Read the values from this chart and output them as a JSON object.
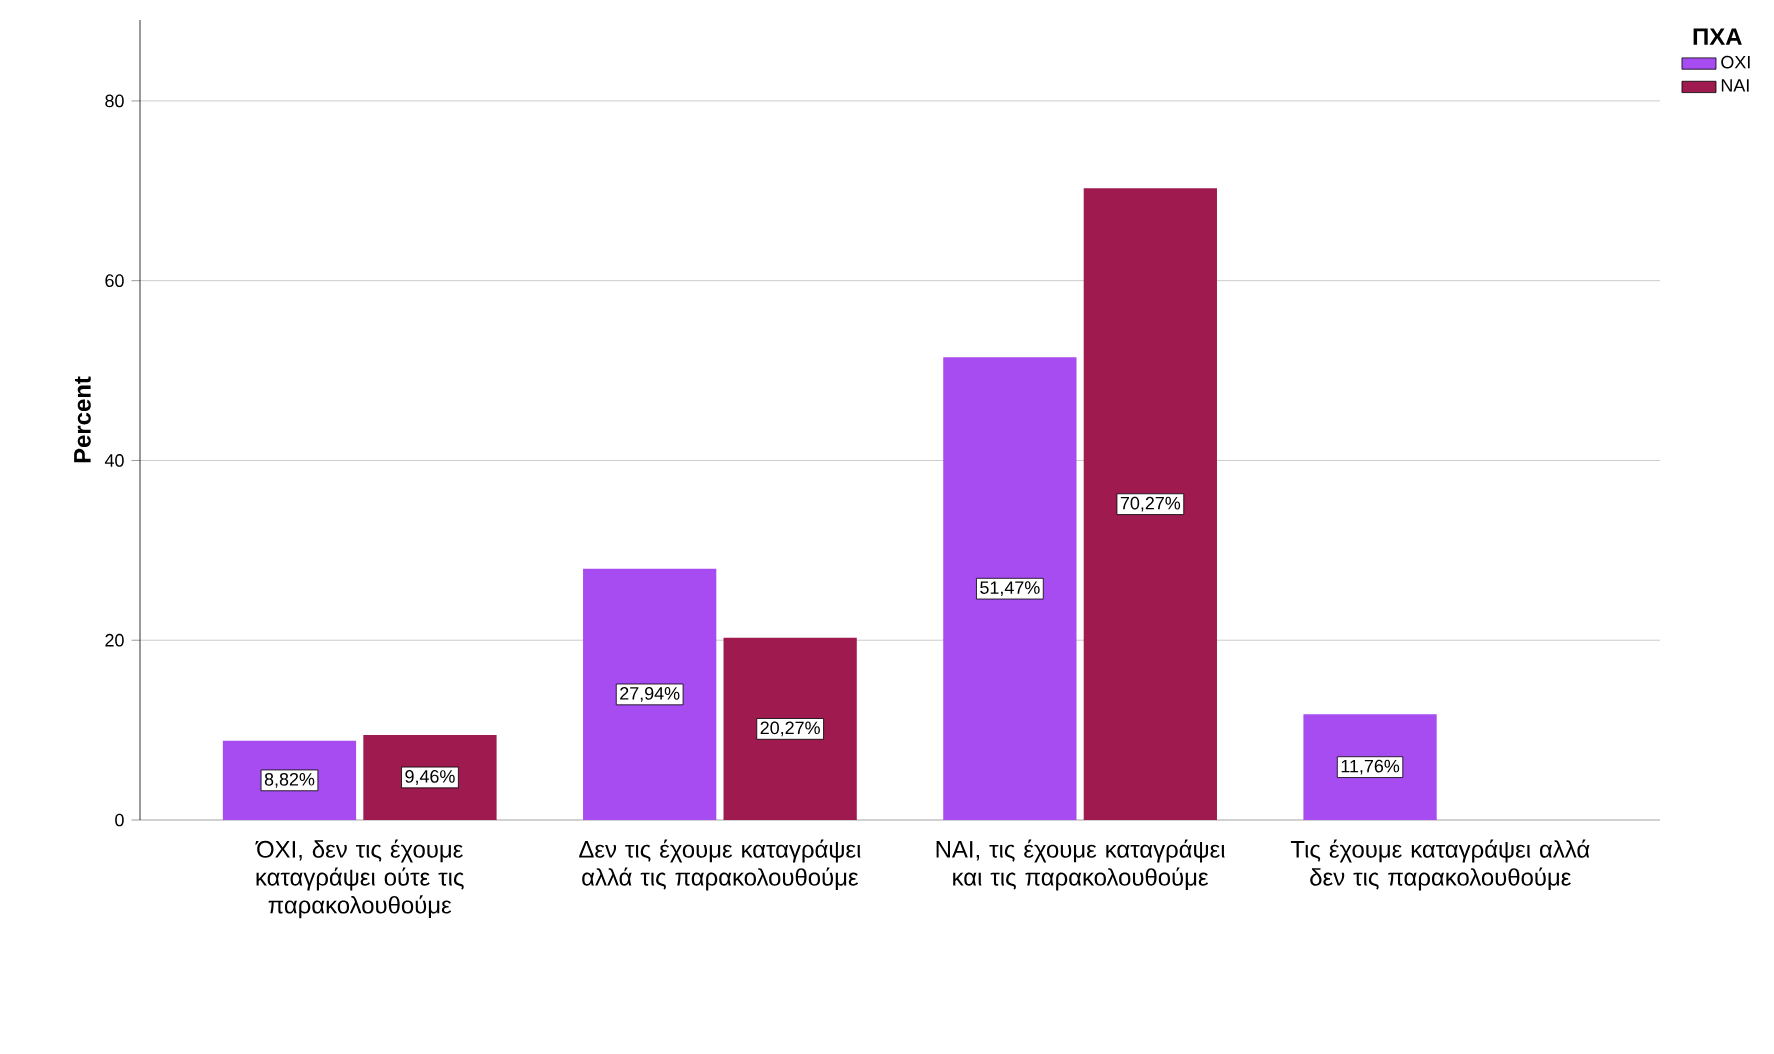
{
  "chart_data": {
    "type": "bar",
    "ylabel": "Percent",
    "legend_title": "ΠΧΑ",
    "categories": [
      "ΌΧΙ, δεν τις έχουμε καταγράψει ούτε τις παρακολουθούμε",
      "Δεν τις έχουμε καταγράψει αλλά τις παρακολουθούμε",
      "ΝΑΙ, τις έχουμε καταγράψει και τις παρακολουθούμε",
      "Τις έχουμε καταγράψει αλλά δεν τις παρακολουθούμε"
    ],
    "series": [
      {
        "name": "ΟΧΙ",
        "color": "#a64cf0",
        "values": [
          8.82,
          27.94,
          51.47,
          11.76
        ],
        "value_labels": [
          "8,82%",
          "27,94%",
          "51,47%",
          "11,76%"
        ]
      },
      {
        "name": "ΝΑΙ",
        "color": "#9e1a4f",
        "values": [
          9.46,
          20.27,
          70.27,
          null
        ],
        "value_labels": [
          "9,46%",
          "20,27%",
          "70,27%",
          null
        ]
      }
    ],
    "ylim": [
      0,
      89
    ],
    "yticks": [
      0,
      20,
      40,
      60,
      80
    ],
    "grid": "y",
    "legend": "right"
  }
}
